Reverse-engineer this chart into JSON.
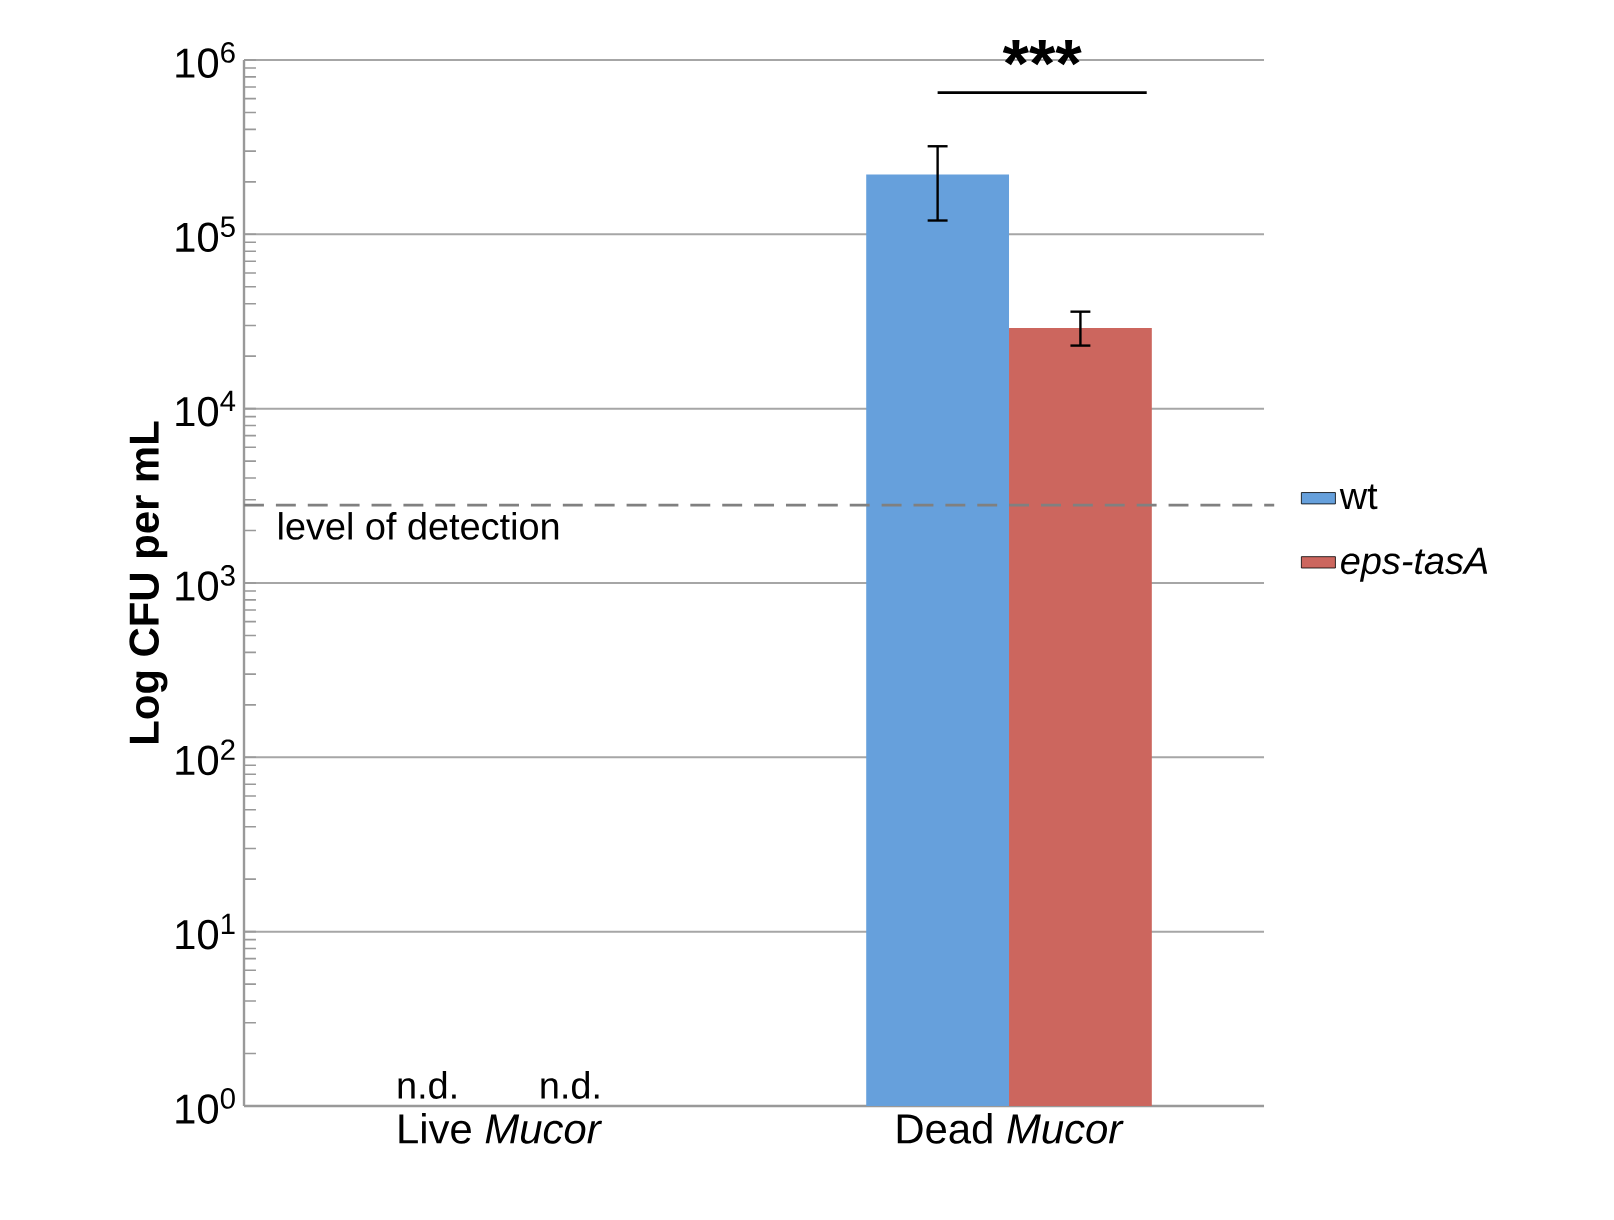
{
  "chart_data": {
    "type": "bar",
    "ylabel": "Log CFU per mL",
    "categories": [
      "Live *Mucor*",
      "Dead *Mucor*"
    ],
    "series": [
      {
        "name": "wt",
        "color": "#66a0dc",
        "values": [
          null,
          220000
        ],
        "errors": [
          null,
          [
            120000,
            320000
          ]
        ],
        "value_labels": [
          "n.d.",
          null
        ]
      },
      {
        "name": "*eps-tasA*",
        "color": "#cc665e",
        "values": [
          null,
          29000
        ],
        "errors": [
          null,
          [
            23000,
            36000
          ]
        ],
        "value_labels": [
          "n.d.",
          null
        ]
      }
    ],
    "log": "y",
    "ylim": [
      1,
      1000000
    ],
    "yticks": [
      {
        "value": 1,
        "label": "10$^{0}$"
      },
      {
        "value": 10,
        "label": "10$^{1}$"
      },
      {
        "value": 100,
        "label": "10$^{2}$"
      },
      {
        "value": 1000,
        "label": "10$^{3}$"
      },
      {
        "value": 10000,
        "label": "10$^{4}$"
      },
      {
        "value": 100000,
        "label": "10$^{5}$"
      },
      {
        "value": 1000000,
        "label": "10$^{6}$"
      }
    ],
    "grid": "y",
    "legend": "right",
    "ref_lines": [
      {
        "axis": "y",
        "value": 2800,
        "label": "level of detection",
        "color": "#808080",
        "line_style": "dashed"
      }
    ],
    "annotations": [
      "***"
    ]
  }
}
